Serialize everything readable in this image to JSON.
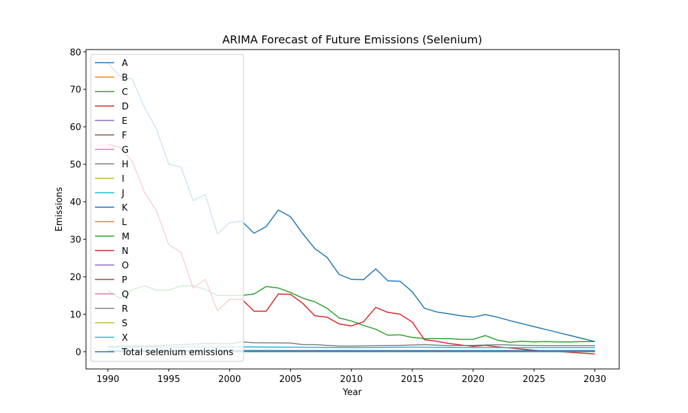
{
  "chart_data": {
    "type": "line",
    "title": "ARIMA Forecast of Future Emissions (Selenium)",
    "xlabel": "Year",
    "ylabel": "Emissions",
    "xlim": [
      1988.2,
      2032
    ],
    "ylim": [
      -4.6,
      80.6
    ],
    "xticks": [
      1990,
      1995,
      2000,
      2005,
      2010,
      2015,
      2020,
      2025,
      2030
    ],
    "yticks": [
      0,
      10,
      20,
      30,
      40,
      50,
      60,
      70,
      80
    ],
    "grid": false,
    "legend_position": "upper-left",
    "series": [
      {
        "name": "A",
        "color": "#1f77b4",
        "x": [
          1990,
          2000,
          2010,
          2020,
          2030
        ],
        "values": [
          0.1,
          0.1,
          0.1,
          0.1,
          0.1
        ]
      },
      {
        "name": "B",
        "color": "#ff7f0e",
        "x": [
          1990,
          2000,
          2010,
          2020,
          2030
        ],
        "values": [
          0.05,
          0.05,
          0.05,
          0.05,
          0.05
        ]
      },
      {
        "name": "C",
        "color": "#2ca02c",
        "x": [
          1990,
          1991,
          1992,
          1993,
          1994,
          1995,
          1996,
          1997,
          1998,
          1999,
          2000,
          2001,
          2002,
          2003,
          2004,
          2005,
          2006,
          2007,
          2008,
          2009,
          2010,
          2011,
          2012,
          2013,
          2014,
          2015,
          2016,
          2017,
          2018,
          2019,
          2020,
          2021,
          2022,
          2023,
          2024,
          2025,
          2026,
          2027,
          2028,
          2029,
          2030
        ],
        "values": [
          16.3,
          14.2,
          16.5,
          17.6,
          16.4,
          16.4,
          17.5,
          17.6,
          16.6,
          15.0,
          15.0,
          15.0,
          15.4,
          17.4,
          17.0,
          15.8,
          14.3,
          13.3,
          11.6,
          9.0,
          8.2,
          7.0,
          6.0,
          4.4,
          4.5,
          3.8,
          3.5,
          3.5,
          3.5,
          3.3,
          3.3,
          4.3,
          3.1,
          2.5,
          2.8,
          2.6,
          2.7,
          2.6,
          2.6,
          2.7,
          2.7
        ]
      },
      {
        "name": "D",
        "color": "#d62728",
        "x": [
          1990,
          1991,
          1992,
          1993,
          1994,
          1995,
          1996,
          1997,
          1998,
          1999,
          2000,
          2001,
          2002,
          2003,
          2004,
          2005,
          2006,
          2007,
          2008,
          2009,
          2010,
          2011,
          2012,
          2013,
          2014,
          2015,
          2016,
          2017,
          2018,
          2019,
          2020,
          2021,
          2022,
          2023,
          2024,
          2025,
          2026,
          2027,
          2028,
          2029,
          2030
        ],
        "values": [
          55.3,
          54.5,
          50.8,
          42.6,
          37.5,
          28.6,
          26.5,
          17.0,
          19.3,
          10.9,
          14.0,
          14.0,
          10.8,
          10.8,
          15.4,
          15.3,
          12.9,
          9.6,
          9.2,
          7.4,
          6.9,
          8.0,
          11.8,
          10.5,
          10.0,
          7.9,
          3.2,
          2.8,
          2.2,
          1.8,
          1.4,
          1.7,
          1.3,
          1.0,
          0.7,
          0.4,
          0.2,
          0.0,
          -0.2,
          -0.4,
          -0.6
        ]
      },
      {
        "name": "E",
        "color": "#9467bd",
        "x": [
          1990,
          2000,
          2010,
          2020,
          2030
        ],
        "values": [
          0.2,
          0.2,
          0.2,
          0.2,
          0.2
        ]
      },
      {
        "name": "F",
        "color": "#8c564b",
        "x": [
          1990,
          2000,
          2010,
          2020,
          2030
        ],
        "values": [
          0.3,
          0.3,
          0.3,
          0.3,
          0.3
        ]
      },
      {
        "name": "G",
        "color": "#e377c2",
        "x": [
          1990,
          2000,
          2010,
          2020,
          2030
        ],
        "values": [
          0.15,
          0.15,
          0.15,
          0.15,
          0.15
        ]
      },
      {
        "name": "H",
        "color": "#7f7f7f",
        "x": [
          1990,
          1992,
          1994,
          1996,
          1998,
          2000,
          2001,
          2002,
          2005,
          2006,
          2007,
          2008,
          2009,
          2010,
          2012,
          2014,
          2016,
          2018,
          2020,
          2022,
          2024,
          2026,
          2028,
          2030
        ],
        "values": [
          1.4,
          1.5,
          1.6,
          1.9,
          2.2,
          2.1,
          2.6,
          2.4,
          2.3,
          1.9,
          1.9,
          1.7,
          1.5,
          1.5,
          1.6,
          1.7,
          1.9,
          1.6,
          1.7,
          1.9,
          1.7,
          1.6,
          1.6,
          1.6
        ]
      },
      {
        "name": "I",
        "color": "#bcbd22",
        "x": [
          1990,
          2000,
          2010,
          2020,
          2030
        ],
        "values": [
          0.0,
          0.0,
          0.0,
          0.0,
          0.0
        ]
      },
      {
        "name": "J",
        "color": "#17becf",
        "x": [
          1990,
          2000,
          2005,
          2010,
          2015,
          2020,
          2025,
          2030
        ],
        "values": [
          1.2,
          1.3,
          1.2,
          1.1,
          1.2,
          1.1,
          1.1,
          1.1
        ]
      },
      {
        "name": "K",
        "color": "#1f77b4",
        "x": [
          1990,
          1991,
          1992,
          1993,
          1994,
          1995,
          1996,
          1997,
          1998,
          1999,
          2000,
          2001,
          2002,
          2003,
          2004,
          2005,
          2006,
          2007,
          2008,
          2009,
          2010,
          2011,
          2012,
          2013,
          2014,
          2015,
          2016,
          2017,
          2018,
          2019,
          2020,
          2021,
          2022,
          2023,
          2024,
          2025,
          2026,
          2027,
          2028,
          2029,
          2030
        ],
        "values": [
          77.0,
          73.5,
          72.7,
          65.2,
          59.3,
          50.0,
          49.3,
          40.3,
          41.9,
          31.4,
          34.4,
          34.8,
          31.6,
          33.4,
          37.8,
          36.0,
          31.5,
          27.5,
          25.2,
          20.6,
          19.3,
          19.2,
          22.1,
          18.9,
          18.8,
          16.0,
          11.6,
          10.6,
          10.1,
          9.6,
          9.2,
          9.9,
          9.2,
          8.3,
          7.5,
          6.7,
          5.9,
          5.1,
          4.3,
          3.5,
          2.7
        ]
      },
      {
        "name": "L",
        "color": "#ff7f0e",
        "x": [
          1990,
          2000,
          2010,
          2020,
          2030
        ],
        "values": [
          0.05,
          0.05,
          0.05,
          0.05,
          0.05
        ]
      },
      {
        "name": "M",
        "color": "#2ca02c",
        "x": [
          1990,
          2000,
          2010,
          2020,
          2030
        ],
        "values": [
          0.2,
          0.2,
          0.2,
          0.2,
          0.2
        ]
      },
      {
        "name": "N",
        "color": "#d62728",
        "x": [
          1990,
          2000,
          2010,
          2020,
          2030
        ],
        "values": [
          0.1,
          0.1,
          0.1,
          0.1,
          0.1
        ]
      },
      {
        "name": "O",
        "color": "#9467bd",
        "x": [
          1990,
          2000,
          2010,
          2020,
          2030
        ],
        "values": [
          0.0,
          0.0,
          0.0,
          0.0,
          0.0
        ]
      },
      {
        "name": "P",
        "color": "#8c564b",
        "x": [
          1990,
          2000,
          2010,
          2020,
          2030
        ],
        "values": [
          0.05,
          0.05,
          0.05,
          0.05,
          0.05
        ]
      },
      {
        "name": "Q",
        "color": "#e377c2",
        "x": [
          1990,
          2000,
          2010,
          2020,
          2030
        ],
        "values": [
          0.1,
          0.1,
          0.1,
          0.1,
          0.1
        ]
      },
      {
        "name": "R",
        "color": "#7f7f7f",
        "x": [
          1990,
          2000,
          2010,
          2020,
          2030
        ],
        "values": [
          0.3,
          0.3,
          0.3,
          0.3,
          0.3
        ]
      },
      {
        "name": "S",
        "color": "#bcbd22",
        "x": [
          1990,
          2000,
          2010,
          2020,
          2030
        ],
        "values": [
          0.0,
          0.0,
          0.0,
          0.0,
          0.0
        ]
      },
      {
        "name": "X",
        "color": "#17becf",
        "x": [
          1990,
          2000,
          2010,
          2020,
          2030
        ],
        "values": [
          0.05,
          0.05,
          0.05,
          0.05,
          0.05
        ]
      },
      {
        "name": "Total selenium emissions",
        "color": "#1f77b4",
        "x": [
          1990,
          2000,
          2010,
          2020,
          2030
        ],
        "values": [
          0.2,
          0.2,
          0.2,
          0.2,
          0.2
        ]
      }
    ]
  }
}
